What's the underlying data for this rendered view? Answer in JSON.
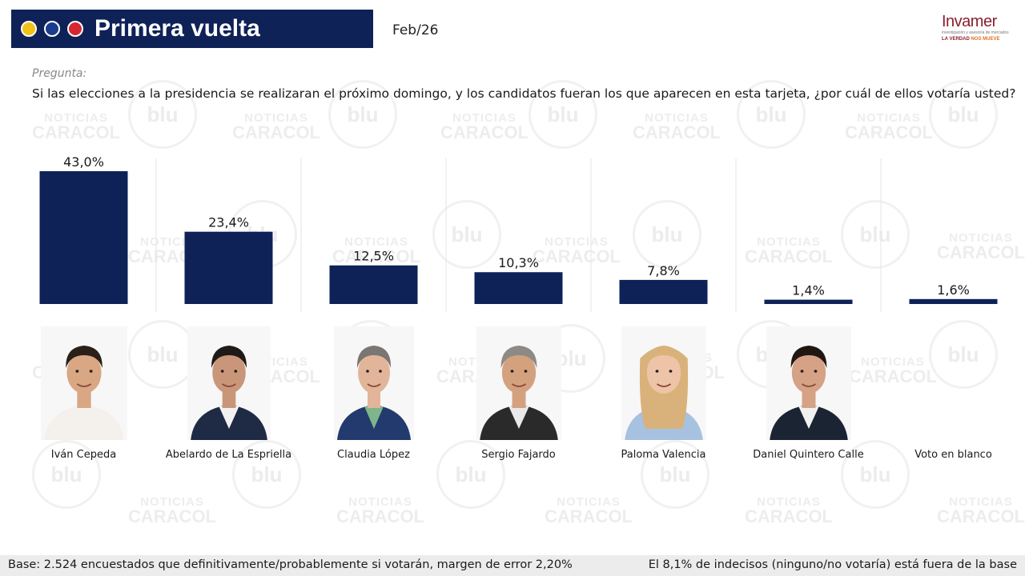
{
  "header": {
    "title": "Primera vuelta",
    "date": "Feb/26",
    "dots": [
      "#f2c118",
      "#1a3c8c",
      "#d7282f"
    ]
  },
  "logo": {
    "name": "Invamer",
    "sub": "investigación y asesoría de mercados",
    "tagline_a": "LA VERDAD",
    "tagline_b": "NOS MUEVE"
  },
  "watermark": {
    "line1": "NOTICIAS",
    "line2": "CARACOL",
    "radio": "blu"
  },
  "question": {
    "label": "Pregunta:",
    "text": "Si las elecciones a la presidencia se realizaran el próximo domingo, y los candidatos fueran los que aparecen en esta tarjeta, ¿por cuál de ellos votaría usted?"
  },
  "chart_data": {
    "type": "bar",
    "categories": [
      "Iván Cepeda",
      "Abelardo de La Espriella",
      "Claudia López",
      "Sergio Fajardo",
      "Paloma Valencia",
      "Daniel Quintero Calle",
      "Voto en blanco"
    ],
    "values": [
      43.0,
      23.4,
      12.5,
      10.3,
      7.8,
      1.4,
      1.6
    ],
    "labels": [
      "43,0%",
      "23,4%",
      "12,5%",
      "10,3%",
      "7,8%",
      "1,4%",
      "1,6%"
    ],
    "ylim": [
      0,
      43.0
    ],
    "bar_color": "#0e2258",
    "grid": false
  },
  "footer": {
    "left": "Base: 2.524 encuestados que definitivamente/probablemente si votarán, margen de error 2,20%",
    "right": "El 8,1% de indecisos (ninguno/no votaría) está fuera de la base"
  }
}
